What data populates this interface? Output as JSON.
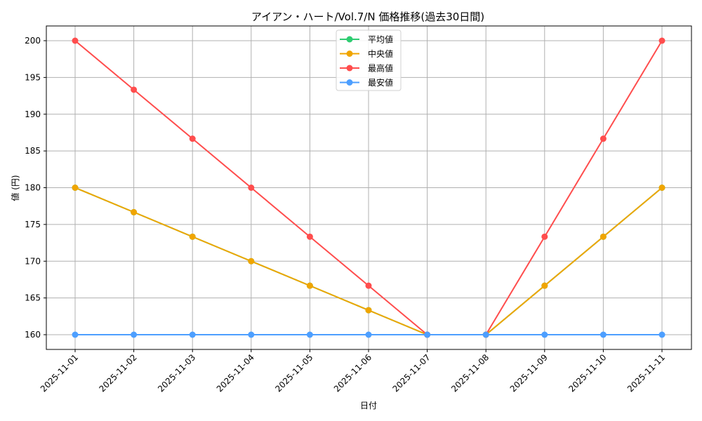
{
  "chart_data": {
    "type": "line",
    "title": "アイアン・ハート/Vol.7/N 価格推移(過去30日間)",
    "xlabel": "日付",
    "ylabel": "値 (円)",
    "categories": [
      "2025-11-01",
      "2025-11-02",
      "2025-11-03",
      "2025-11-04",
      "2025-11-05",
      "2025-11-06",
      "2025-11-07",
      "2025-11-08",
      "2025-11-09",
      "2025-11-10",
      "2025-11-11"
    ],
    "yticks": [
      160,
      165,
      170,
      175,
      180,
      185,
      190,
      195,
      200
    ],
    "ylim": [
      158,
      202
    ],
    "grid": true,
    "legend_position": "upper center",
    "series": [
      {
        "name": "平均値",
        "color": "#2ecc71",
        "values": [
          180,
          176.67,
          173.33,
          170,
          166.67,
          163.33,
          160,
          160,
          166.67,
          173.33,
          180
        ]
      },
      {
        "name": "中央値",
        "color": "#f0a500",
        "values": [
          180,
          176.67,
          173.33,
          170,
          166.67,
          163.33,
          160,
          160,
          166.67,
          173.33,
          180
        ]
      },
      {
        "name": "最高値",
        "color": "#ff4d4d",
        "values": [
          200,
          193.33,
          186.67,
          180,
          173.33,
          166.67,
          160,
          160,
          173.33,
          186.67,
          200
        ]
      },
      {
        "name": "最安値",
        "color": "#4d9fff",
        "values": [
          160,
          160,
          160,
          160,
          160,
          160,
          160,
          160,
          160,
          160,
          160
        ]
      }
    ]
  }
}
